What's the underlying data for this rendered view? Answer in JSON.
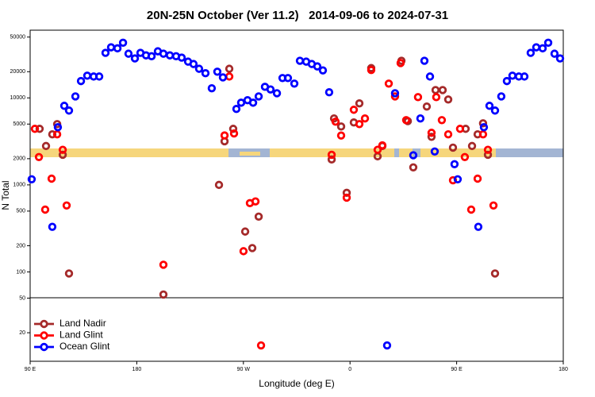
{
  "chart_data": {
    "type": "scatter",
    "title": "20N-25N October (Ver 11.2)   2014-09-06 to 2024-07-31",
    "x_label": "Longitude (deg E)",
    "y_label": "N Total",
    "log_y": true,
    "legend": "bottom-left",
    "xlim": [
      90,
      540
    ],
    "xticks": [
      {
        "value": 90,
        "label": "90 E"
      },
      180,
      {
        "value": 270,
        "label": "90 W"
      },
      {
        "value": 360,
        "label": "0"
      },
      {
        "value": 450,
        "label": "90 E"
      },
      {
        "value": 540,
        "label": "180"
      }
    ],
    "ylim": [
      9.4,
      60000
    ],
    "yticks": [
      20,
      50,
      100,
      200,
      500,
      1000,
      2000,
      5000,
      10000,
      20000,
      50000
    ],
    "series": [
      {
        "name": "Land Nadir",
        "color": "#a52a2a",
        "x": [
          98.0,
          103.4,
          108.7,
          112.8,
          117.5,
          122.8,
          202.5,
          249.4,
          254.1,
          258.1,
          261.4,
          271.5,
          277.5,
          282.9,
          346.5,
          344.5,
          352.5,
          357.2,
          363.2,
          367.9,
          377.9,
          383.3,
          387.3,
          403.4,
          408.8,
          413.4,
          424.8,
          428.8,
          432.2,
          438.2,
          442.9,
          446.9,
          457.6,
          463.0,
          467.7,
          472.3,
          476.4,
          482.4
        ],
        "values": [
          4410,
          2800,
          3810,
          5000,
          2220,
          96,
          55,
          1000,
          3170,
          21600,
          4410,
          291,
          188,
          432,
          5800,
          1960,
          4690,
          811,
          5220,
          8640,
          22000,
          2130,
          2800,
          26700,
          5400,
          1590,
          7960,
          3570,
          12300,
          12300,
          9590,
          2680,
          4410,
          2800,
          3810,
          5100,
          2220,
          96
        ]
      },
      {
        "name": "Land Glint",
        "color": "#ff0000",
        "x": [
          94.0,
          97.4,
          102.7,
          108.1,
          112.8,
          117.5,
          120.8,
          202.5,
          254.1,
          258.1,
          262.1,
          270.1,
          275.5,
          280.2,
          284.9,
          344.5,
          347.8,
          352.5,
          357.2,
          363.2,
          367.9,
          372.6,
          377.9,
          383.3,
          387.3,
          392.7,
          398.0,
          402.7,
          407.4,
          417.4,
          428.8,
          432.8,
          437.5,
          442.9,
          446.9,
          452.9,
          456.9,
          462.3,
          467.7,
          472.3,
          476.4,
          481.1
        ],
        "values": [
          4410,
          2090,
          520,
          1180,
          3810,
          2530,
          580,
          121,
          3700,
          17600,
          3900,
          173,
          617,
          646,
          14.3,
          2220,
          5330,
          3690,
          713,
          7300,
          5000,
          5800,
          20900,
          2530,
          2850,
          14600,
          10400,
          25100,
          5550,
          10200,
          3970,
          10200,
          5550,
          3810,
          1130,
          4410,
          2090,
          520,
          1180,
          3810,
          2530,
          580
        ]
      },
      {
        "name": "Ocean Glint",
        "color": "#0000ff",
        "x": [
          91.3,
          108.7,
          113.4,
          118.8,
          122.8,
          128.2,
          132.9,
          138.2,
          143.6,
          148.3,
          153.6,
          158.3,
          163.7,
          168.4,
          173.0,
          178.4,
          183.1,
          187.8,
          192.5,
          197.8,
          202.5,
          207.9,
          213.2,
          217.9,
          223.3,
          227.9,
          232.6,
          238.0,
          243.3,
          248.0,
          252.7,
          264.1,
          268.1,
          273.5,
          278.2,
          282.9,
          288.2,
          292.9,
          298.3,
          303.0,
          307.6,
          313.0,
          317.7,
          323.0,
          327.7,
          332.4,
          337.1,
          342.4,
          391.3,
          398.0,
          413.4,
          419.4,
          422.8,
          427.5,
          431.5,
          448.2,
          450.9,
          468.3,
          473.0,
          477.7,
          482.4,
          487.7,
          492.4,
          497.1,
          502.5,
          507.2,
          512.5,
          517.2,
          522.6,
          527.3,
          532.6,
          537.3
        ],
        "values": [
          1160,
          330,
          4600,
          8110,
          7150,
          10400,
          15600,
          18000,
          17600,
          17600,
          32900,
          38100,
          37100,
          43000,
          32200,
          28400,
          32900,
          30800,
          30100,
          34300,
          32200,
          30800,
          30100,
          29000,
          26100,
          24500,
          21600,
          19200,
          12900,
          20000,
          17200,
          7460,
          8800,
          9400,
          8800,
          10400,
          13400,
          12500,
          11300,
          16900,
          16900,
          14600,
          26700,
          26100,
          24500,
          23000,
          20700,
          11600,
          14.3,
          11300,
          2190,
          5800,
          26700,
          17600,
          2420,
          1730,
          1160,
          330,
          4600,
          8110,
          7150,
          10400,
          15600,
          18000,
          17600,
          17600,
          32900,
          38100,
          37100,
          43000,
          32200,
          28400
        ]
      }
    ]
  }
}
